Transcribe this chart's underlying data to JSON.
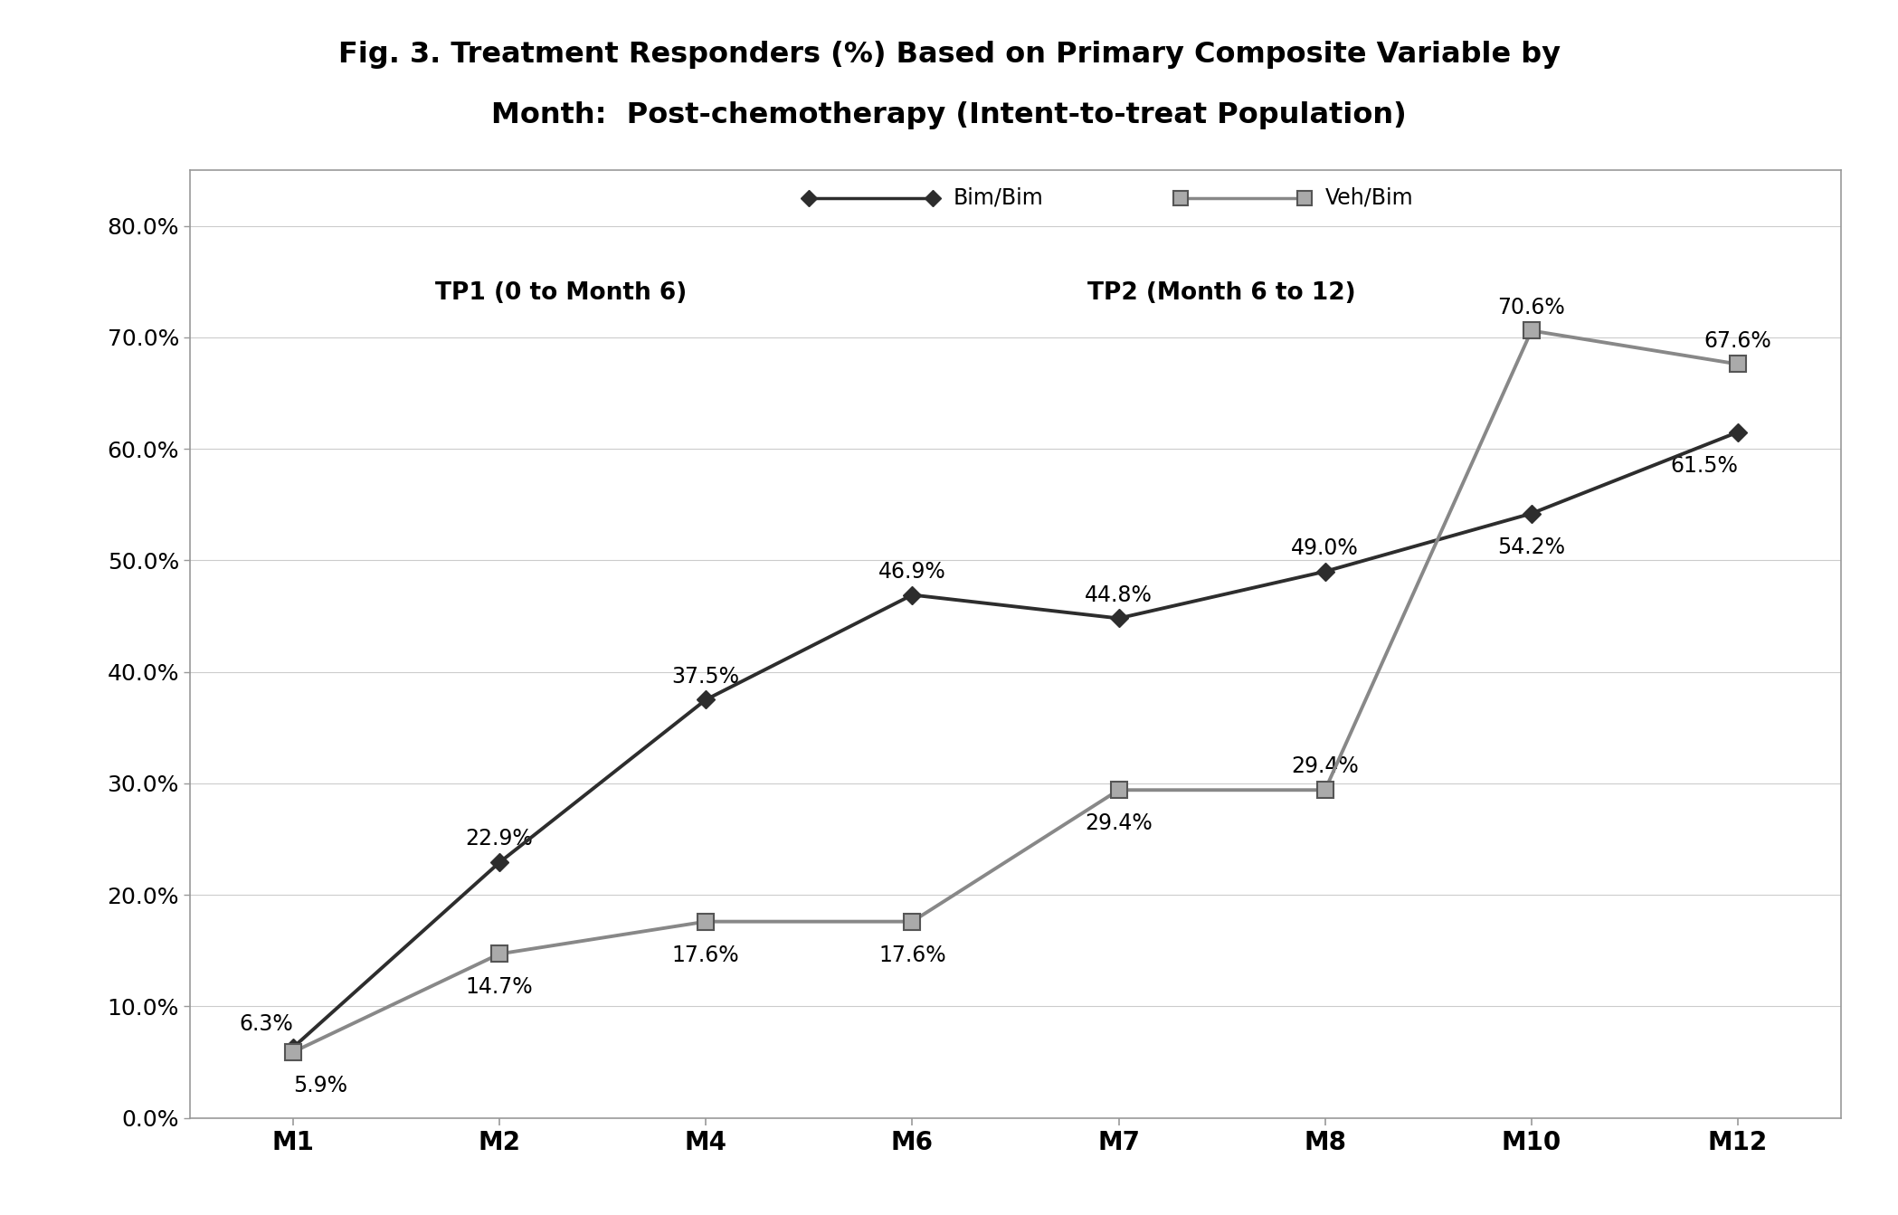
{
  "title_line1": "Fig. 3. Treatment Responders (%) Based on Primary Composite Variable by",
  "title_line2": "Month:  Post-chemotherapy (Intent-to-treat Population)",
  "x_labels": [
    "M1",
    "M2",
    "M4",
    "M6",
    "M7",
    "M8",
    "M10",
    "M12"
  ],
  "x_positions": [
    0,
    1,
    2,
    3,
    4,
    5,
    6,
    7
  ],
  "bim_bim_values": [
    6.3,
    22.9,
    37.5,
    46.9,
    44.8,
    49.0,
    54.2,
    61.5
  ],
  "veh_bim_values": [
    5.9,
    14.7,
    17.6,
    17.6,
    29.4,
    29.4,
    70.6,
    67.6
  ],
  "bim_bim_labels": [
    "6.3%",
    "22.9%",
    "37.5%",
    "46.9%",
    "44.8%",
    "49.0%",
    "54.2%",
    "61.5%"
  ],
  "veh_bim_labels": [
    "5.9%",
    "14.7%",
    "17.6%",
    "17.6%",
    "29.4%",
    "29.4%",
    "70.6%",
    "67.6%"
  ],
  "bim_bim_color": "#2d2d2d",
  "veh_bim_color": "#888888",
  "ylim": [
    0,
    85
  ],
  "yticks": [
    0,
    10,
    20,
    30,
    40,
    50,
    60,
    70,
    80
  ],
  "ytick_labels": [
    "0.0%",
    "10.0%",
    "20.0%",
    "30.0%",
    "40.0%",
    "50.0%",
    "60.0%",
    "70.0%",
    "80.0%"
  ],
  "tp1_text": "TP1 (0 to Month 6)",
  "tp2_text": "TP2 (Month 6 to 12)",
  "bg_color": "#ffffff",
  "legend_bim": "Bim/Bim",
  "legend_veh": "Veh/Bim",
  "bim_label_offsets_x": [
    0,
    0,
    0,
    0,
    0,
    0,
    0,
    0
  ],
  "bim_label_offsets_y": [
    10,
    10,
    10,
    10,
    10,
    10,
    -18,
    -18
  ],
  "bim_label_ha": [
    "right",
    "center",
    "center",
    "center",
    "center",
    "center",
    "center",
    "right"
  ],
  "veh_label_offsets_x": [
    0,
    0,
    0,
    0,
    0,
    0,
    0,
    0
  ],
  "veh_label_offsets_y": [
    -18,
    -18,
    -18,
    -18,
    -18,
    10,
    10,
    10
  ],
  "veh_label_ha": [
    "left",
    "center",
    "center",
    "center",
    "center",
    "center",
    "center",
    "center"
  ]
}
